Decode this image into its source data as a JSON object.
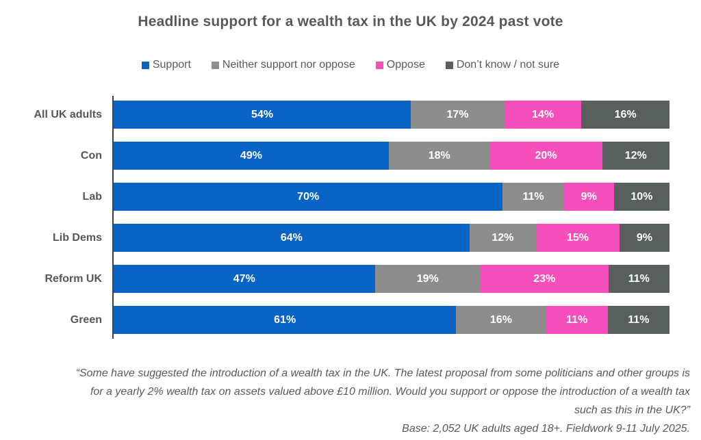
{
  "title": "Headline support for a wealth tax in the UK by 2024 past vote",
  "colors": {
    "background": "#ffffff",
    "title_text": "#595959",
    "category_text": "#575757",
    "bar_value_text": "#ffffff",
    "axis_line": "#3f3f3f",
    "footnote_text": "#595959"
  },
  "chart_data": {
    "type": "bar",
    "orientation": "horizontal",
    "stacked": true,
    "normalized_to_100_percent": true,
    "legend_position": "top",
    "value_suffix": "%",
    "grid": false,
    "categories": [
      "All UK adults",
      "Con",
      "Lab",
      "Lib Dems",
      "Reform UK",
      "Green"
    ],
    "series": [
      {
        "name": "Support",
        "color": "#0a64c6",
        "values": [
          54,
          49,
          70,
          64,
          47,
          61
        ]
      },
      {
        "name": "Neither support nor oppose",
        "color": "#8d8e8b",
        "values": [
          17,
          18,
          11,
          12,
          19,
          16
        ]
      },
      {
        "name": "Oppose",
        "color": "#f64fbb",
        "values": [
          14,
          20,
          9,
          15,
          23,
          11
        ]
      },
      {
        "name": "Don’t know / not sure",
        "color": "#58605b",
        "values": [
          16,
          12,
          10,
          9,
          11,
          11
        ]
      }
    ],
    "title": "Headline support for a wealth tax in the UK by 2024 past vote"
  },
  "footnote": {
    "question_lines": [
      "“Some have suggested the introduction of a wealth tax in the UK. The latest proposal from some politicians and other groups is",
      "for a yearly 2% wealth tax on assets valued above £10 million. Would you support or oppose the introduction of a wealth tax",
      "such as this in the UK?”"
    ],
    "base": "Base: 2,052 UK adults aged 18+. Fieldwork 9-11 July 2025."
  }
}
